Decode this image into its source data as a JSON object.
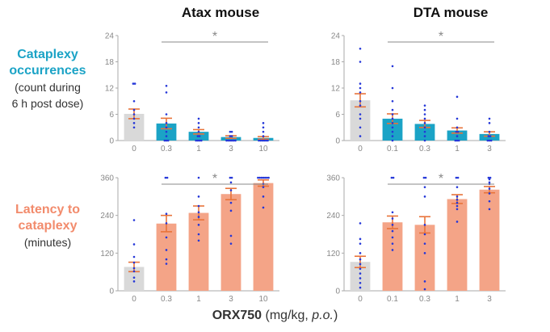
{
  "column_titles": [
    "Atax mouse",
    "DTA mouse"
  ],
  "rows": [
    {
      "title": "Cataplexy occurrences",
      "title_lines": [
        "Cataplexy",
        "occurrences"
      ],
      "subtitle_lines": [
        "(count during",
        "6 h post dose)"
      ],
      "color": "#1ba3c6"
    },
    {
      "title": "Latency to cataplexy",
      "title_lines": [
        "Latency to",
        "cataplexy"
      ],
      "subtitle_lines": [
        "(minutes)"
      ],
      "color": "#f28b6c"
    }
  ],
  "x_axis": {
    "title": "ORX750",
    "units_prefix": " (mg/kg, ",
    "units_italic": "p.o.",
    "units_suffix": ")"
  },
  "significance_marker": "*",
  "colors": {
    "control": "#d9d9d9",
    "cataplexy": "#1ba3c6",
    "latency": "#f4a487",
    "error": "#e8733a",
    "dots": "#2436d8",
    "axis": "#aaaaaa",
    "sig": "#888888"
  },
  "chart_data": [
    {
      "type": "bar",
      "panel": "Atax mouse — cataplexy occurrences",
      "row": 0,
      "col": 0,
      "categories": [
        "0",
        "0.3",
        "1",
        "3",
        "10"
      ],
      "values": [
        6.1,
        3.9,
        2.0,
        0.8,
        0.6
      ],
      "errors": [
        1.1,
        1.2,
        0.5,
        0.3,
        0.3
      ],
      "ylim": [
        0,
        24
      ],
      "yticks": [
        0,
        6,
        12,
        18,
        24
      ],
      "sig_from": 1,
      "sig_to": 4,
      "points": [
        [
          13,
          13,
          9,
          7,
          6,
          5,
          4,
          3
        ],
        [
          12.5,
          11,
          6,
          4,
          3,
          2,
          1,
          0,
          0,
          0
        ],
        [
          5,
          4,
          3,
          2,
          1,
          1,
          0,
          0,
          0,
          0
        ],
        [
          2,
          2,
          1,
          1,
          0,
          0,
          0,
          0,
          0,
          0
        ],
        [
          4,
          3,
          2,
          1,
          0,
          0,
          0,
          0,
          0,
          0
        ]
      ]
    },
    {
      "type": "bar",
      "panel": "DTA mouse — cataplexy occurrences",
      "row": 0,
      "col": 1,
      "categories": [
        "0",
        "0.1",
        "0.3",
        "1",
        "3"
      ],
      "values": [
        9.2,
        5.0,
        3.8,
        2.3,
        1.5
      ],
      "errors": [
        1.5,
        1.1,
        0.8,
        0.6,
        0.5
      ],
      "ylim": [
        0,
        24
      ],
      "yticks": [
        0,
        6,
        12,
        18,
        24
      ],
      "sig_from": 1,
      "sig_to": 4,
      "points": [
        [
          21,
          18,
          13,
          12,
          11,
          9,
          8,
          6,
          5,
          3,
          1
        ],
        [
          17,
          12,
          9,
          7,
          6,
          5,
          4,
          3,
          2,
          1,
          0
        ],
        [
          8,
          7,
          6,
          5,
          4,
          3,
          2,
          1,
          0
        ],
        [
          10,
          5,
          3,
          2,
          2,
          1,
          0,
          0,
          0
        ],
        [
          5,
          4,
          2,
          1,
          1,
          0,
          0,
          0
        ]
      ]
    },
    {
      "type": "bar",
      "panel": "Atax mouse — latency to cataplexy",
      "row": 1,
      "col": 0,
      "categories": [
        "0",
        "0.3",
        "1",
        "3",
        "10"
      ],
      "values": [
        76,
        214,
        248,
        308,
        343
      ],
      "errors": [
        15,
        26,
        22,
        18,
        10
      ],
      "ylim": [
        0,
        360
      ],
      "yticks": [
        0,
        120,
        240,
        360
      ],
      "sig_from": 1,
      "sig_to": 4,
      "points": [
        [
          225,
          148,
          108,
          90,
          72,
          62,
          42,
          30
        ],
        [
          360,
          360,
          245,
          215,
          170,
          130,
          100,
          86
        ],
        [
          360,
          300,
          270,
          250,
          235,
          210,
          180,
          160
        ],
        [
          360,
          360,
          345,
          320,
          280,
          255,
          175,
          150
        ],
        [
          360,
          360,
          360,
          360,
          360,
          360,
          360,
          340,
          330,
          300,
          265
        ]
      ]
    },
    {
      "type": "bar",
      "panel": "DTA mouse — latency to cataplexy",
      "row": 1,
      "col": 1,
      "categories": [
        "0",
        "0.1",
        "0.3",
        "1",
        "3"
      ],
      "values": [
        92,
        218,
        210,
        292,
        322
      ],
      "errors": [
        18,
        20,
        26,
        14,
        10
      ],
      "ylim": [
        0,
        360
      ],
      "yticks": [
        0,
        120,
        240,
        360
      ],
      "sig_from": 1,
      "sig_to": 4,
      "points": [
        [
          215,
          165,
          150,
          120,
          100,
          85,
          70,
          55,
          40,
          25,
          10
        ],
        [
          360,
          360,
          250,
          230,
          210,
          190,
          170,
          150,
          130
        ],
        [
          360,
          360,
          330,
          300,
          210,
          180,
          150,
          120,
          30,
          5
        ],
        [
          360,
          360,
          330,
          300,
          290,
          280,
          270,
          260,
          220
        ],
        [
          360,
          360,
          355,
          345,
          340,
          325,
          310,
          285,
          260
        ]
      ]
    }
  ]
}
